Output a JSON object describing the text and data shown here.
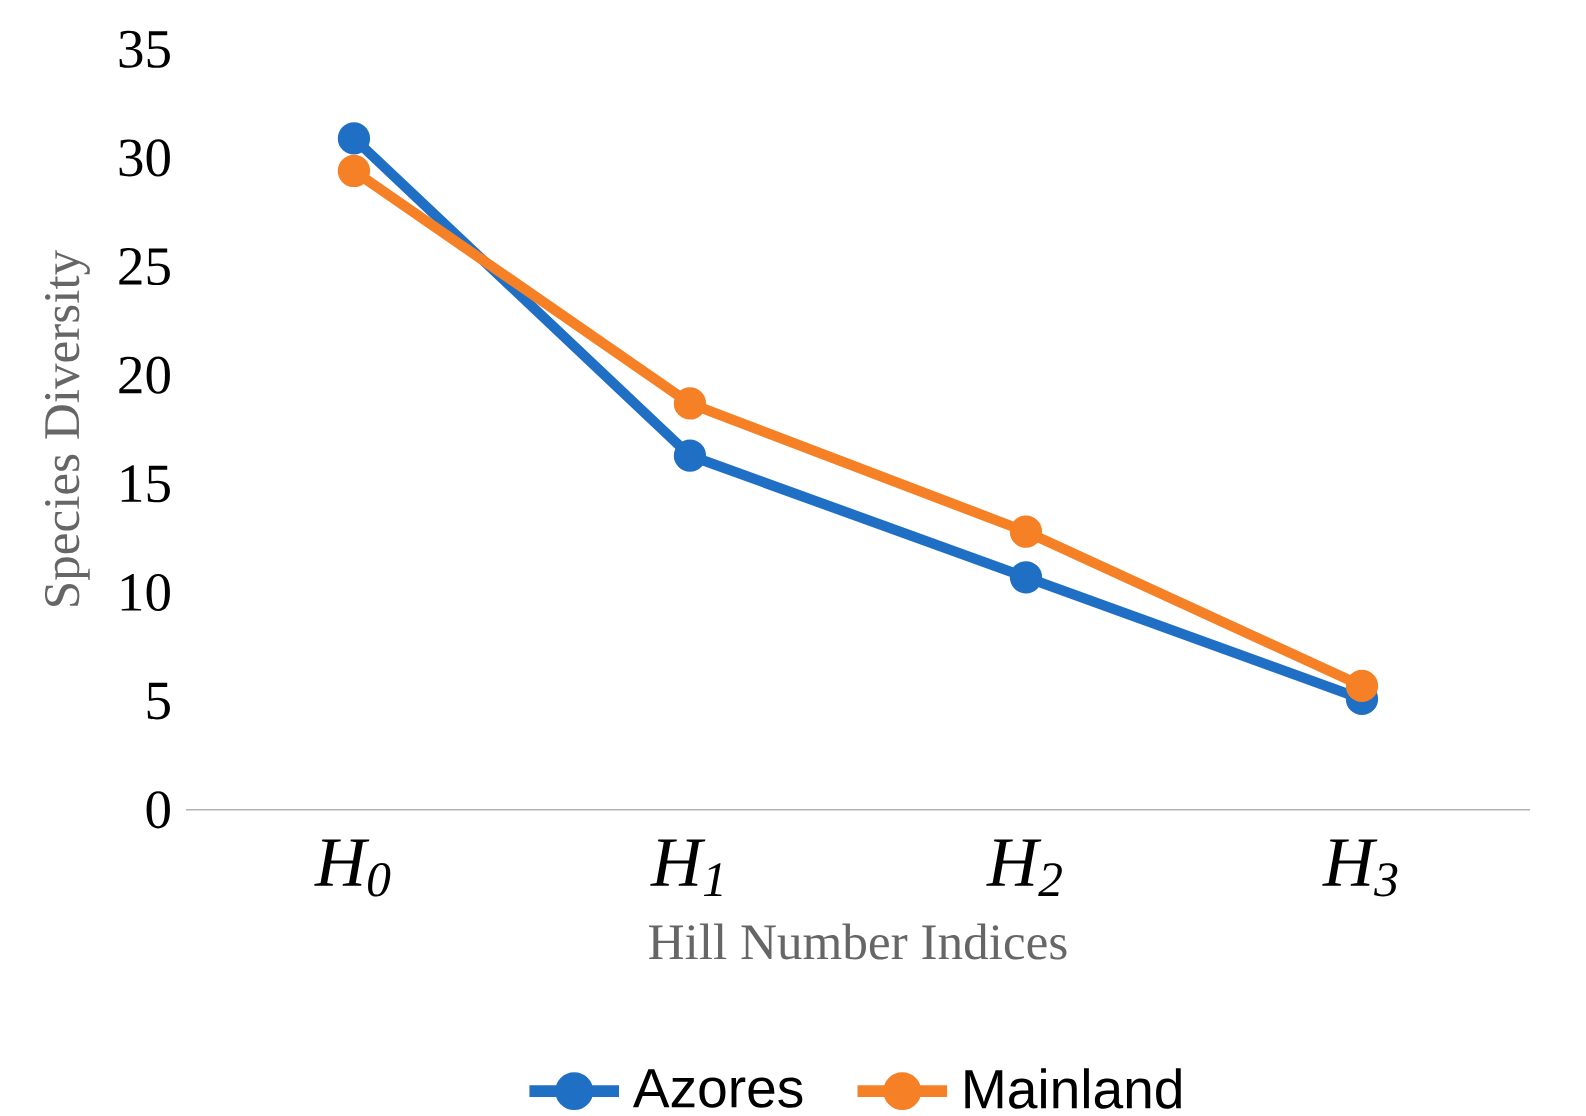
{
  "chart_data": {
    "type": "line",
    "xlabel": "Hill Number Indices",
    "ylabel": "Species Diversity",
    "categories": [
      "H$_{0}$",
      "H$_{1}$",
      "H$_{2}$",
      "H$_{3}$"
    ],
    "series": [
      {
        "name": "Azores",
        "color": "#1f6fc5",
        "values": [
          30.9,
          16.3,
          10.7,
          5.1
        ]
      },
      {
        "name": "Mainland",
        "color": "#f58025",
        "values": [
          29.4,
          18.7,
          12.8,
          5.7
        ]
      }
    ],
    "ylim": [
      0,
      35
    ],
    "yticks": [
      0,
      5,
      10,
      15,
      20,
      25,
      30,
      35
    ],
    "grid": false,
    "legend": "bottom",
    "marker": "circle",
    "line_style": "solid"
  }
}
